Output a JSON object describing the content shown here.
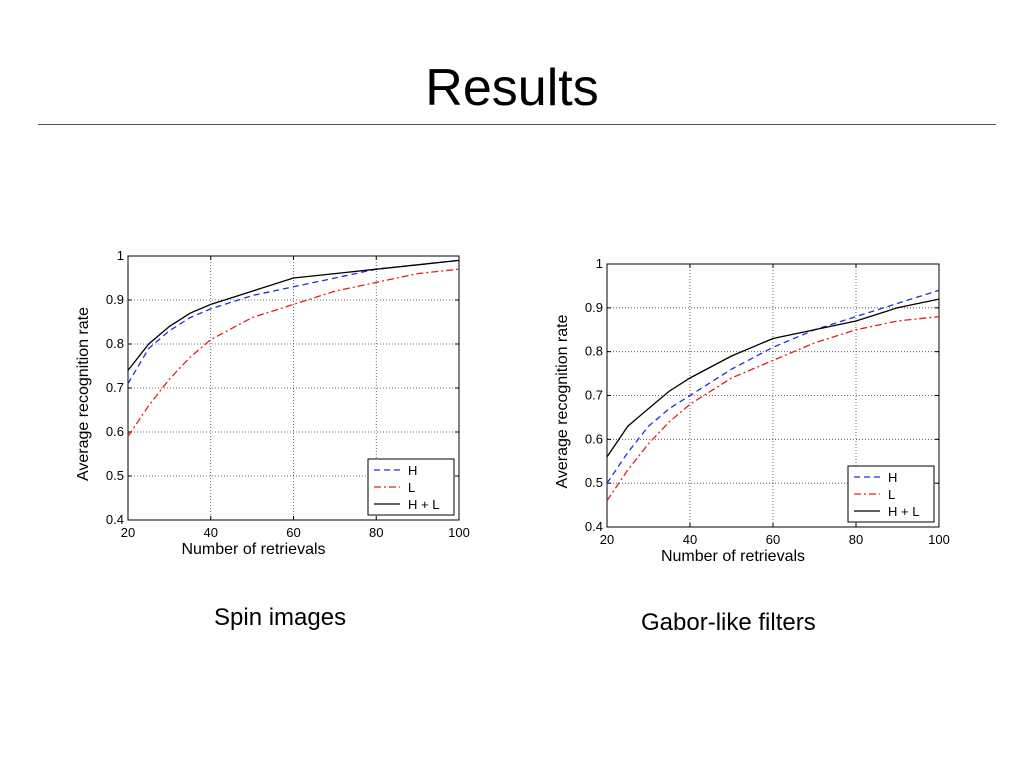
{
  "slide": {
    "title": "Results",
    "captions": [
      "Spin images",
      "Gabor-like filters"
    ]
  },
  "colors": {
    "H": "#1f2fd8",
    "L": "#e0201c",
    "HL": "#000000",
    "grid": "#444444"
  },
  "chart_data": [
    {
      "type": "line",
      "xlabel": "Number of retrievals",
      "ylabel": "Average recognition rate",
      "xlim": [
        20,
        100
      ],
      "ylim": [
        0.4,
        1
      ],
      "xticks": [
        20,
        40,
        60,
        80,
        100
      ],
      "yticks": [
        0.4,
        0.5,
        0.6,
        0.7,
        0.8,
        0.9,
        1
      ],
      "grid": true,
      "legend_position": "bottom-right",
      "x": [
        20,
        25,
        30,
        35,
        40,
        50,
        60,
        70,
        80,
        90,
        100
      ],
      "series": [
        {
          "name": "H",
          "style": "dashed",
          "color": "#1f2fd8",
          "values": [
            0.71,
            0.79,
            0.83,
            0.86,
            0.88,
            0.91,
            0.93,
            0.95,
            0.97,
            0.98,
            0.99
          ]
        },
        {
          "name": "L",
          "style": "dashdot",
          "color": "#e0201c",
          "values": [
            0.59,
            0.66,
            0.72,
            0.77,
            0.81,
            0.86,
            0.89,
            0.92,
            0.94,
            0.96,
            0.97
          ]
        },
        {
          "name": "H + L",
          "style": "solid",
          "color": "#000000",
          "values": [
            0.74,
            0.8,
            0.84,
            0.87,
            0.89,
            0.92,
            0.95,
            0.96,
            0.97,
            0.98,
            0.99
          ]
        }
      ]
    },
    {
      "type": "line",
      "xlabel": "Number of retrievals",
      "ylabel": "Average recognition rate",
      "xlim": [
        20,
        100
      ],
      "ylim": [
        0.4,
        1
      ],
      "xticks": [
        20,
        40,
        60,
        80,
        100
      ],
      "yticks": [
        0.4,
        0.5,
        0.6,
        0.7,
        0.8,
        0.9,
        1
      ],
      "grid": true,
      "legend_position": "bottom-right",
      "x": [
        20,
        25,
        30,
        35,
        40,
        50,
        60,
        70,
        80,
        90,
        100
      ],
      "series": [
        {
          "name": "H",
          "style": "dashed",
          "color": "#1f2fd8",
          "values": [
            0.5,
            0.57,
            0.63,
            0.67,
            0.7,
            0.76,
            0.81,
            0.85,
            0.88,
            0.91,
            0.94
          ]
        },
        {
          "name": "L",
          "style": "dashdot",
          "color": "#e0201c",
          "values": [
            0.46,
            0.53,
            0.59,
            0.64,
            0.68,
            0.74,
            0.78,
            0.82,
            0.85,
            0.87,
            0.88
          ]
        },
        {
          "name": "H + L",
          "style": "solid",
          "color": "#000000",
          "values": [
            0.56,
            0.63,
            0.67,
            0.71,
            0.74,
            0.79,
            0.83,
            0.85,
            0.87,
            0.9,
            0.92
          ]
        }
      ]
    }
  ]
}
